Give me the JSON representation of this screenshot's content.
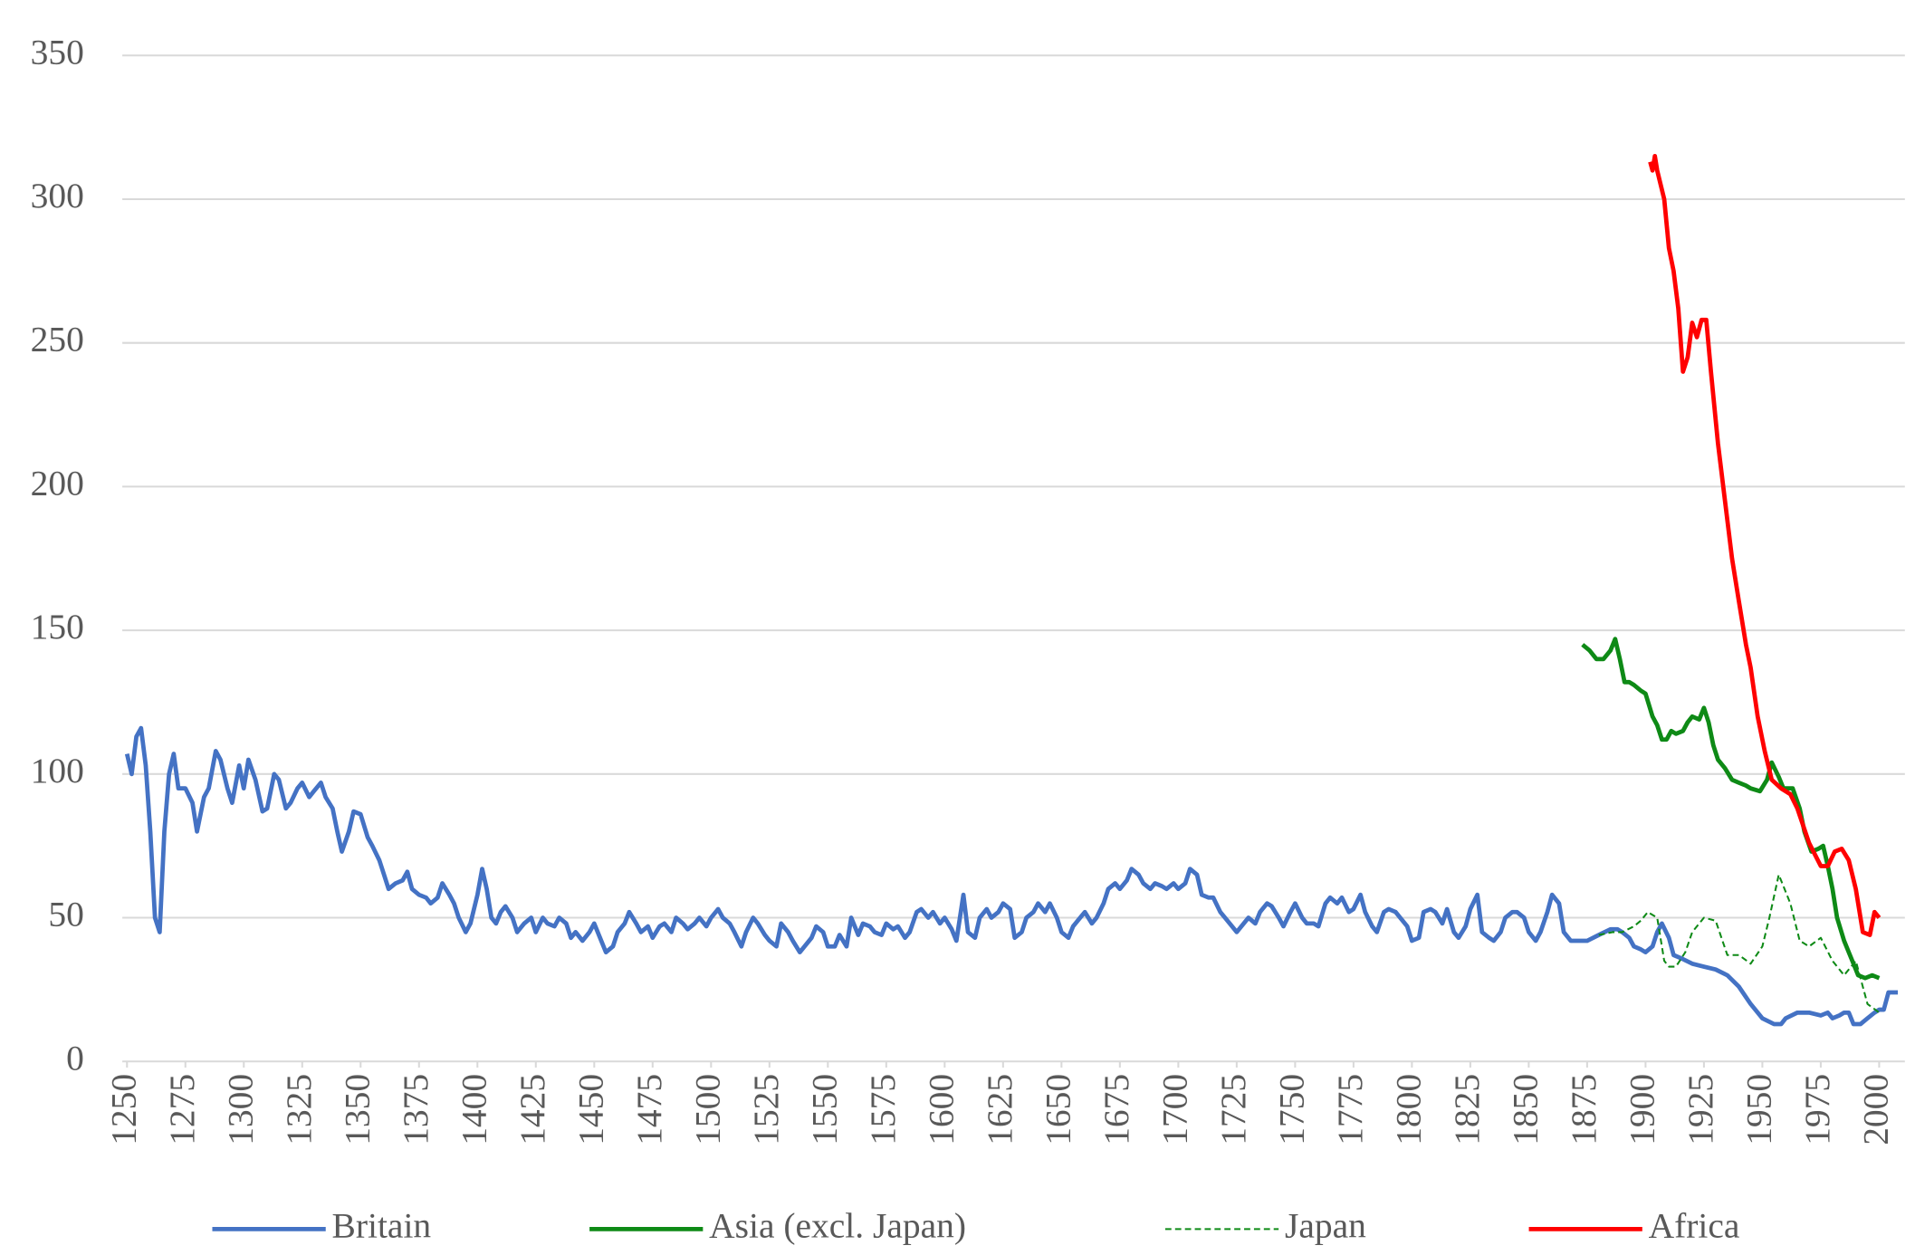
{
  "chart_data": {
    "type": "line",
    "xlim": [
      1248,
      2011
    ],
    "ylim": [
      0,
      350
    ],
    "xticks": [
      1250,
      1275,
      1300,
      1325,
      1350,
      1375,
      1400,
      1425,
      1450,
      1475,
      1500,
      1525,
      1550,
      1575,
      1600,
      1625,
      1650,
      1675,
      1700,
      1725,
      1750,
      1775,
      1800,
      1825,
      1850,
      1875,
      1900,
      1925,
      1950,
      1975,
      2000
    ],
    "yticks": [
      0,
      50,
      100,
      150,
      200,
      250,
      300,
      350
    ],
    "grid": true,
    "legend": "bottom",
    "series": [
      {
        "name": "Britain",
        "color": "#4472c4",
        "dashed": false,
        "x": [
          1250,
          1252,
          1254,
          1256,
          1258,
          1260,
          1262,
          1264,
          1266,
          1268,
          1270,
          1272,
          1275,
          1278,
          1280,
          1283,
          1285,
          1288,
          1290,
          1293,
          1295,
          1298,
          1300,
          1302,
          1305,
          1308,
          1310,
          1313,
          1315,
          1318,
          1320,
          1323,
          1325,
          1328,
          1330,
          1333,
          1335,
          1338,
          1340,
          1342,
          1345,
          1347,
          1350,
          1353,
          1355,
          1358,
          1360,
          1362,
          1365,
          1368,
          1370,
          1372,
          1375,
          1378,
          1380,
          1383,
          1385,
          1388,
          1390,
          1392,
          1395,
          1397,
          1400,
          1402,
          1404,
          1406,
          1408,
          1410,
          1412,
          1415,
          1417,
          1420,
          1423,
          1425,
          1428,
          1430,
          1433,
          1435,
          1438,
          1440,
          1442,
          1445,
          1448,
          1450,
          1453,
          1455,
          1458,
          1460,
          1463,
          1465,
          1468,
          1470,
          1473,
          1475,
          1478,
          1480,
          1483,
          1485,
          1488,
          1490,
          1493,
          1495,
          1498,
          1500,
          1503,
          1505,
          1508,
          1510,
          1513,
          1515,
          1518,
          1520,
          1523,
          1525,
          1528,
          1530,
          1533,
          1535,
          1538,
          1540,
          1543,
          1545,
          1548,
          1550,
          1553,
          1555,
          1558,
          1560,
          1563,
          1565,
          1568,
          1570,
          1573,
          1575,
          1578,
          1580,
          1583,
          1585,
          1588,
          1590,
          1593,
          1595,
          1598,
          1600,
          1603,
          1605,
          1608,
          1610,
          1613,
          1615,
          1618,
          1620,
          1623,
          1625,
          1628,
          1630,
          1633,
          1635,
          1638,
          1640,
          1643,
          1645,
          1648,
          1650,
          1653,
          1655,
          1658,
          1660,
          1663,
          1665,
          1668,
          1670,
          1673,
          1675,
          1678,
          1680,
          1683,
          1685,
          1688,
          1690,
          1693,
          1695,
          1698,
          1700,
          1703,
          1705,
          1708,
          1710,
          1713,
          1715,
          1718,
          1720,
          1723,
          1725,
          1728,
          1730,
          1733,
          1735,
          1738,
          1740,
          1743,
          1745,
          1748,
          1750,
          1753,
          1755,
          1758,
          1760,
          1763,
          1765,
          1768,
          1770,
          1773,
          1775,
          1778,
          1780,
          1783,
          1785,
          1788,
          1790,
          1793,
          1795,
          1798,
          1800,
          1803,
          1805,
          1808,
          1810,
          1813,
          1815,
          1818,
          1820,
          1823,
          1825,
          1828,
          1830,
          1833,
          1835,
          1838,
          1840,
          1843,
          1845,
          1848,
          1850,
          1853,
          1855,
          1858,
          1860,
          1863,
          1865,
          1868,
          1870,
          1875,
          1880,
          1885,
          1888,
          1890,
          1893,
          1895,
          1898,
          1900,
          1903,
          1905,
          1907,
          1910,
          1912,
          1915,
          1920,
          1925,
          1930,
          1935,
          1940,
          1945,
          1950,
          1955,
          1958,
          1960,
          1965,
          1970,
          1975,
          1978,
          1980,
          1983,
          1985,
          1987,
          1989,
          1992,
          1995,
          1998,
          2000,
          2002,
          2004,
          2008
        ],
        "values": [
          107,
          100,
          113,
          116,
          103,
          80,
          50,
          45,
          80,
          100,
          107,
          95,
          95,
          90,
          80,
          92,
          95,
          108,
          105,
          95,
          90,
          103,
          95,
          105,
          98,
          87,
          88,
          100,
          98,
          88,
          90,
          95,
          97,
          92,
          94,
          97,
          92,
          88,
          80,
          73,
          80,
          87,
          86,
          78,
          75,
          70,
          65,
          60,
          62,
          63,
          66,
          60,
          58,
          57,
          55,
          57,
          62,
          58,
          55,
          50,
          45,
          48,
          58,
          67,
          60,
          50,
          48,
          52,
          54,
          50,
          45,
          48,
          50,
          45,
          50,
          48,
          47,
          50,
          48,
          43,
          45,
          42,
          45,
          48,
          42,
          38,
          40,
          45,
          48,
          52,
          48,
          45,
          47,
          43,
          47,
          48,
          45,
          50,
          48,
          46,
          48,
          50,
          47,
          50,
          53,
          50,
          48,
          45,
          40,
          45,
          50,
          48,
          44,
          42,
          40,
          48,
          45,
          42,
          38,
          40,
          43,
          47,
          45,
          40,
          40,
          44,
          40,
          50,
          44,
          48,
          47,
          45,
          44,
          48,
          46,
          47,
          43,
          45,
          52,
          53,
          50,
          52,
          48,
          50,
          46,
          42,
          58,
          45,
          43,
          50,
          53,
          50,
          52,
          55,
          53,
          43,
          45,
          50,
          52,
          55,
          52,
          55,
          50,
          45,
          43,
          47,
          50,
          52,
          48,
          50,
          55,
          60,
          62,
          60,
          63,
          67,
          65,
          62,
          60,
          62,
          61,
          60,
          62,
          60,
          62,
          67,
          65,
          58,
          57,
          57,
          52,
          50,
          47,
          45,
          48,
          50,
          48,
          52,
          55,
          54,
          50,
          47,
          52,
          55,
          50,
          48,
          48,
          47,
          55,
          57,
          55,
          57,
          52,
          53,
          58,
          52,
          47,
          45,
          52,
          53,
          52,
          50,
          47,
          42,
          43,
          52,
          53,
          52,
          48,
          53,
          45,
          43,
          47,
          53,
          58,
          45,
          43,
          42,
          45,
          50,
          52,
          52,
          50,
          45,
          42,
          45,
          52,
          58,
          55,
          45,
          42,
          42,
          42,
          44,
          46,
          46,
          45,
          43,
          40,
          39,
          38,
          40,
          45,
          48,
          43,
          37,
          36,
          34,
          33,
          32,
          30,
          26,
          20,
          15,
          13,
          13,
          15,
          17,
          17,
          16,
          17,
          15,
          16,
          17,
          17,
          13,
          13,
          15,
          17,
          18,
          18,
          24,
          24
        ]
      },
      {
        "name": "Asia (excl. Japan)",
        "color": "#0e8a16",
        "dashed": false,
        "x": [
          1873,
          1876,
          1879,
          1882,
          1885,
          1887,
          1889,
          1891,
          1893,
          1895,
          1898,
          1900,
          1903,
          1905,
          1907,
          1909,
          1911,
          1913,
          1916,
          1918,
          1920,
          1923,
          1925,
          1927,
          1929,
          1931,
          1934,
          1937,
          1940,
          1943,
          1945,
          1949,
          1952,
          1954,
          1957,
          1959,
          1963,
          1966,
          1968,
          1971,
          1974,
          1976,
          1978,
          1980,
          1982,
          1985,
          1987,
          1989,
          1991,
          1994,
          1997,
          2000
        ],
        "values": [
          145,
          143,
          140,
          140,
          143,
          147,
          140,
          132,
          132,
          131,
          129,
          128,
          120,
          117,
          112,
          112,
          115,
          114,
          115,
          118,
          120,
          119,
          123,
          118,
          110,
          105,
          102,
          98,
          97,
          96,
          95,
          94,
          98,
          104,
          99,
          95,
          95,
          88,
          80,
          73,
          74,
          75,
          68,
          60,
          50,
          42,
          38,
          34,
          30,
          29,
          30,
          29
        ]
      },
      {
        "name": "Japan",
        "color": "#0e8a16",
        "dashed": true,
        "x": [
          1880,
          1886,
          1890,
          1895,
          1898,
          1901,
          1905,
          1908,
          1910,
          1913,
          1917,
          1920,
          1925,
          1930,
          1935,
          1940,
          1945,
          1950,
          1953,
          1957,
          1962,
          1966,
          1970,
          1975,
          1980,
          1985,
          1990,
          1995,
          2000
        ],
        "values": [
          44,
          45,
          45,
          47,
          49,
          52,
          50,
          35,
          33,
          33,
          38,
          45,
          50,
          49,
          37,
          37,
          34,
          40,
          50,
          65,
          55,
          42,
          40,
          43,
          35,
          30,
          35,
          20,
          17
        ]
      },
      {
        "name": "Africa",
        "color": "#ff0000",
        "dashed": false,
        "x": [
          1902,
          1903,
          1904,
          1905,
          1908,
          1910,
          1912,
          1914,
          1916,
          1918,
          1920,
          1922,
          1924,
          1926,
          1928,
          1931,
          1934,
          1937,
          1940,
          1943,
          1945,
          1948,
          1951,
          1954,
          1958,
          1962,
          1965,
          1970,
          1975,
          1978,
          1981,
          1984,
          1987,
          1990,
          1993,
          1996,
          1998,
          2000
        ],
        "values": [
          313,
          310,
          315,
          310,
          300,
          283,
          275,
          262,
          240,
          245,
          257,
          252,
          258,
          258,
          240,
          215,
          195,
          175,
          160,
          145,
          137,
          120,
          108,
          98,
          95,
          93,
          88,
          76,
          68,
          68,
          73,
          74,
          70,
          60,
          45,
          44,
          52,
          50
        ]
      }
    ]
  }
}
